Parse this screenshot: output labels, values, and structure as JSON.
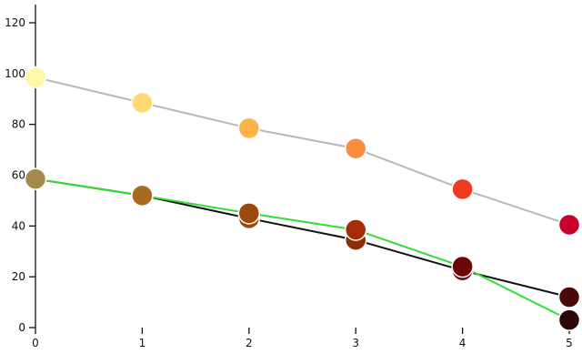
{
  "chart_data": {
    "type": "line",
    "title": "",
    "xlabel": "",
    "ylabel": "",
    "x": [
      0,
      1,
      2,
      3,
      4,
      5
    ],
    "xlim": [
      0,
      5
    ],
    "ylim": [
      0,
      120
    ],
    "x_ticks": [
      "0",
      "1",
      "2",
      "3",
      "4",
      "5"
    ],
    "y_ticks": [
      "0",
      "20",
      "40",
      "60",
      "80",
      "100",
      "120"
    ],
    "grid": false,
    "legend": "none",
    "series": [
      {
        "line_color": "#b8b8b8",
        "values": [
          98.5,
          88.5,
          78.5,
          70.5,
          54.5,
          40.5
        ],
        "point_colors": [
          "#fff7a8",
          "#fed976",
          "#feb24c",
          "#fd8d3c",
          "#f03b20",
          "#c9002a"
        ]
      },
      {
        "line_color": "#111111",
        "values": [
          58.5,
          52,
          43,
          34.5,
          22.5,
          12
        ],
        "point_colors": [
          "#a68a4c",
          "#a86a22",
          "#9a4a0e",
          "#8a2e08",
          "#7a0c0c",
          "#4a0808"
        ]
      },
      {
        "line_color": "#33dd33",
        "values": [
          58.5,
          52,
          45,
          38.5,
          24,
          3
        ],
        "point_colors": [
          "#a68a4c",
          "#a86a22",
          "#9a4a0e",
          "#a62c08",
          "#6a0606",
          "#2a0606"
        ]
      }
    ]
  }
}
